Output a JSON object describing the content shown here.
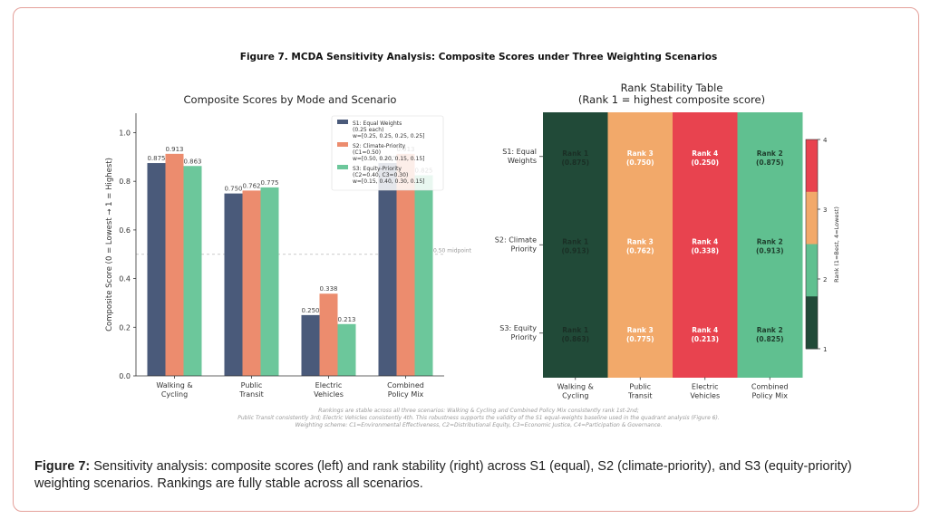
{
  "figure_title": "Figure 7. MCDA Sensitivity Analysis: Composite Scores under Three Weighting Scenarios",
  "caption": {
    "label": "Figure 7:",
    "text": "Sensitivity analysis: composite scores (left) and rank stability (right) across S1 (equal), S2 (climate-priority), and S3 (equity-priority) weighting scenarios. Rankings are fully stable across all scenarios."
  },
  "footnote": [
    "Rankings are stable across all three scenarios: Walking & Cycling and Combined Policy Mix consistently rank 1st-2nd;",
    "Public Transit consistently 3rd; Electric Vehicles consistently 4th. This robustness supports the validity of the S1 equal-weights baseline used in the quadrant analysis (Figure 6).",
    "Weighting scheme: C1=Environmental Effectiveness, C2=Distributional Equity, C3=Economic Justice, C4=Participation & Governance."
  ],
  "colors": {
    "S1": "#4a5a7a",
    "S2": "#ec8c6e",
    "S3": "#6cc79b",
    "rank1": "#214a38",
    "rank2": "#60c090",
    "rank3": "#f2a96a",
    "rank4": "#e8434f"
  },
  "chart_data": [
    {
      "type": "bar",
      "title": "Composite Scores by Mode and Scenario",
      "ylabel": "Composite Score (0 = Lowest → 1 = Highest)",
      "ylim": [
        0,
        1.08
      ],
      "yticks": [
        "0.0",
        "0.2",
        "0.4",
        "0.6",
        "0.8",
        "1.0"
      ],
      "ytick_values": [
        0,
        0.2,
        0.4,
        0.6,
        0.8,
        1.0
      ],
      "categories": [
        [
          "Walking &",
          "Cycling"
        ],
        [
          "Public",
          "Transit"
        ],
        [
          "Electric",
          "Vehicles"
        ],
        [
          "Combined",
          "Policy Mix"
        ]
      ],
      "series": [
        {
          "name": "S1: Equal Weights",
          "detail": [
            "(0.25 each)",
            "w=[0.25, 0.25, 0.25, 0.25]"
          ],
          "values": [
            0.875,
            0.75,
            0.25,
            0.875
          ],
          "labels": [
            "0.875",
            "0.750",
            "0.250",
            "0.875"
          ]
        },
        {
          "name": "S2: Climate-Priority",
          "detail": [
            "(C1=0.50)",
            "w=[0.50, 0.20, 0.15, 0.15]"
          ],
          "values": [
            0.913,
            0.762,
            0.338,
            0.913
          ],
          "labels": [
            "0.913",
            "0.762",
            "0.338",
            "0.913"
          ]
        },
        {
          "name": "S3: Equity-Priority",
          "detail": [
            "(C2=0.40, C3=0.30)",
            "w=[0.15, 0.40, 0.30, 0.15]"
          ],
          "values": [
            0.863,
            0.775,
            0.213,
            0.825
          ],
          "labels": [
            "0.863",
            "0.775",
            "0.213",
            "0.825"
          ]
        }
      ],
      "reference_line": {
        "value": 0.5,
        "label": "0.50 midpoint"
      },
      "legend": "top-right",
      "grid": false
    },
    {
      "type": "heatmap",
      "title": [
        "Rank Stability Table",
        "(Rank 1 = highest composite score)"
      ],
      "rows": [
        [
          "S1: Equal",
          "Weights"
        ],
        [
          "S2: Climate",
          "Priority"
        ],
        [
          "S3: Equity",
          "Priority"
        ]
      ],
      "columns": [
        [
          "Walking &",
          "Cycling"
        ],
        [
          "Public",
          "Transit"
        ],
        [
          "Electric",
          "Vehicles"
        ],
        [
          "Combined",
          "Policy Mix"
        ]
      ],
      "ranks": [
        [
          1,
          3,
          4,
          2
        ],
        [
          1,
          3,
          4,
          2
        ],
        [
          1,
          3,
          4,
          2
        ]
      ],
      "cell_labels": [
        [
          [
            "Rank 1",
            "(0.875)"
          ],
          [
            "Rank 3",
            "(0.750)"
          ],
          [
            "Rank 4",
            "(0.250)"
          ],
          [
            "Rank 2",
            "(0.875)"
          ]
        ],
        [
          [
            "Rank 1",
            "(0.913)"
          ],
          [
            "Rank 3",
            "(0.762)"
          ],
          [
            "Rank 4",
            "(0.338)"
          ],
          [
            "Rank 2",
            "(0.913)"
          ]
        ],
        [
          [
            "Rank 1",
            "(0.863)"
          ],
          [
            "Rank 3",
            "(0.775)"
          ],
          [
            "Rank 4",
            "(0.213)"
          ],
          [
            "Rank 2",
            "(0.825)"
          ]
        ]
      ],
      "colorbar": {
        "label": "Rank (1=Best, 4=Lowest)",
        "ticks": [
          "1",
          "2",
          "3",
          "4"
        ],
        "range": [
          1,
          4
        ]
      }
    }
  ]
}
